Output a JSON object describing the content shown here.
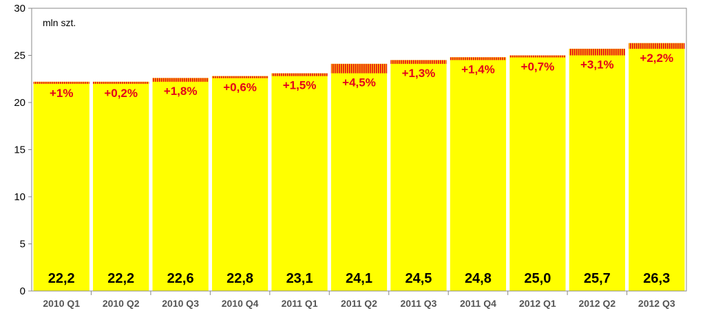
{
  "chart_data": {
    "type": "bar",
    "unit_label": "mln szt.",
    "categories": [
      "2010 Q1",
      "2010 Q2",
      "2010 Q3",
      "2010 Q4",
      "2011 Q1",
      "2011 Q2",
      "2011 Q3",
      "2011 Q4",
      "2012 Q1",
      "2012 Q2",
      "2012 Q3"
    ],
    "values": [
      22.2,
      22.2,
      22.6,
      22.8,
      23.1,
      24.1,
      24.5,
      24.8,
      25.0,
      25.7,
      26.3
    ],
    "value_labels": [
      "22,2",
      "22,2",
      "22,6",
      "22,8",
      "23,1",
      "24,1",
      "24,5",
      "24,8",
      "25,0",
      "25,7",
      "26,3"
    ],
    "change_labels": [
      "+1%",
      "+0,2%",
      "+1,8%",
      "+0,6%",
      "+1,5%",
      "+4,5%",
      "+1,3%",
      "+1,4%",
      "+0,7%",
      "+3,1%",
      "+2,2%"
    ],
    "ylim": [
      0,
      30
    ],
    "yticks": [
      0,
      5,
      10,
      15,
      20,
      25,
      30
    ],
    "grid": false,
    "colors": {
      "bar_fill": "#ffff00",
      "growth_stripe_a": "#e3001b",
      "growth_stripe_b": "#ffcc00",
      "change_text": "#e3001b",
      "value_text": "#000000",
      "plot_background": "#ffffff"
    }
  }
}
